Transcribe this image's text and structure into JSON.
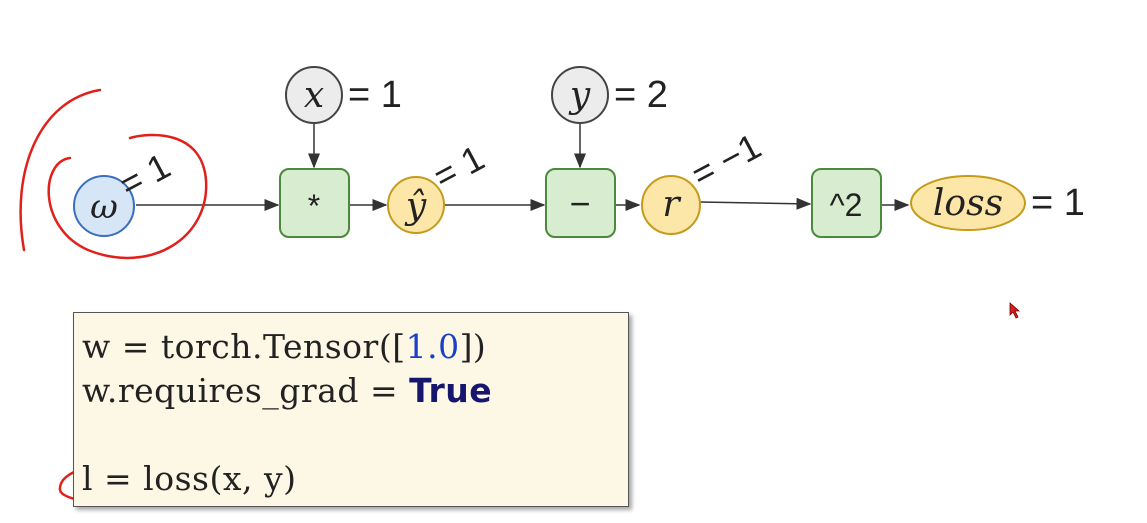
{
  "graph": {
    "input_x": {
      "symbol": "x",
      "assignment": "= 1"
    },
    "input_y": {
      "symbol": "y",
      "assignment": "= 2"
    },
    "weight": {
      "symbol": "ω",
      "annotation": "= 1"
    },
    "op_mul": {
      "symbol": "*"
    },
    "y_hat": {
      "symbol": "ŷ",
      "annotation": "= 1"
    },
    "op_sub": {
      "symbol": "−"
    },
    "residual": {
      "symbol": "r",
      "annotation": "= −1"
    },
    "op_square": {
      "symbol": "^2"
    },
    "loss": {
      "symbol": "loss",
      "assignment": "= 1"
    }
  },
  "code": {
    "line1": {
      "text": "w = torch.Tensor([",
      "number": "1.0",
      "tail": "])"
    },
    "line2": {
      "text": "w.requires_grad = ",
      "keyword": "True"
    },
    "line3": {
      "text": "l = loss(x, y)"
    }
  },
  "colors": {
    "input_node": "#ececec",
    "weight_node": "#d6e6f7",
    "op_node": "#d8ecd0",
    "value_node": "#fce6a8",
    "annotation_stroke": "#e0201a"
  }
}
